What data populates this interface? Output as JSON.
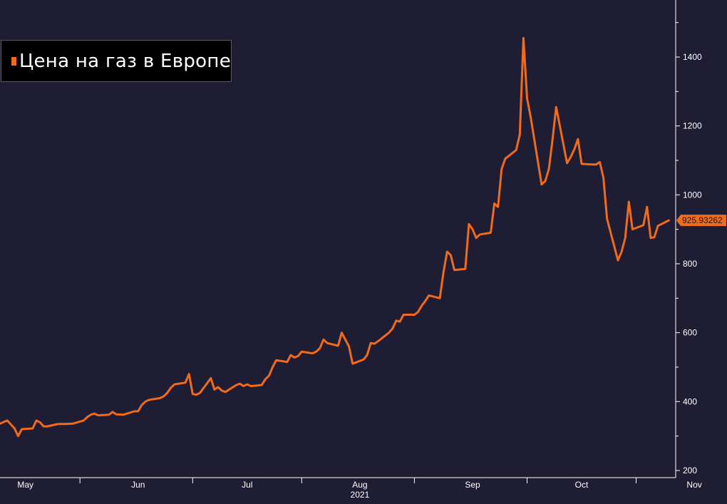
{
  "colors": {
    "background": "#1f1d33",
    "series": "#f26a1b",
    "axis": "#ffffff",
    "legend_bg": "#000000"
  },
  "legend": {
    "label": "Цена на газ в Европе",
    "position": "top-left"
  },
  "last_value_label": "925.93262",
  "chart_data": {
    "type": "line",
    "title": "",
    "xlabel": "",
    "ylabel": "",
    "year_label": "2021",
    "x_ticks": [
      "May",
      "Jun",
      "Jul",
      "Aug",
      "Sep",
      "Oct",
      "Nov"
    ],
    "y_ticks": [
      200,
      400,
      600,
      800,
      1000,
      1200,
      1400
    ],
    "xlim": [
      "2021-04-24",
      "2021-11-05"
    ],
    "ylim": [
      185,
      1550
    ],
    "grid": false,
    "legend_position": "top-left",
    "series": [
      {
        "name": "Цена на газ в Европе",
        "points": [
          [
            "2021-04-24",
            336
          ],
          [
            "2021-04-26",
            345
          ],
          [
            "2021-04-28",
            322
          ],
          [
            "2021-04-29",
            300
          ],
          [
            "2021-04-30",
            320
          ],
          [
            "2021-05-03",
            322
          ],
          [
            "2021-05-04",
            345
          ],
          [
            "2021-05-05",
            340
          ],
          [
            "2021-05-06",
            328
          ],
          [
            "2021-05-07",
            328
          ],
          [
            "2021-05-10",
            335
          ],
          [
            "2021-05-12",
            335
          ],
          [
            "2021-05-14",
            336
          ],
          [
            "2021-05-17",
            345
          ],
          [
            "2021-05-18",
            355
          ],
          [
            "2021-05-19",
            362
          ],
          [
            "2021-05-20",
            365
          ],
          [
            "2021-05-21",
            360
          ],
          [
            "2021-05-24",
            362
          ],
          [
            "2021-05-25",
            370
          ],
          [
            "2021-05-26",
            363
          ],
          [
            "2021-05-28",
            362
          ],
          [
            "2021-05-31",
            372
          ],
          [
            "2021-06-01",
            372
          ],
          [
            "2021-06-02",
            390
          ],
          [
            "2021-06-03",
            400
          ],
          [
            "2021-06-04",
            405
          ],
          [
            "2021-06-07",
            410
          ],
          [
            "2021-06-08",
            415
          ],
          [
            "2021-06-09",
            425
          ],
          [
            "2021-06-10",
            440
          ],
          [
            "2021-06-11",
            450
          ],
          [
            "2021-06-14",
            455
          ],
          [
            "2021-06-15",
            480
          ],
          [
            "2021-06-16",
            422
          ],
          [
            "2021-06-17",
            420
          ],
          [
            "2021-06-18",
            425
          ],
          [
            "2021-06-21",
            468
          ],
          [
            "2021-06-22",
            435
          ],
          [
            "2021-06-23",
            442
          ],
          [
            "2021-06-24",
            432
          ],
          [
            "2021-06-25",
            428
          ],
          [
            "2021-06-28",
            448
          ],
          [
            "2021-06-29",
            452
          ],
          [
            "2021-06-30",
            445
          ],
          [
            "2021-07-01",
            450
          ],
          [
            "2021-07-02",
            445
          ],
          [
            "2021-07-05",
            448
          ],
          [
            "2021-07-06",
            465
          ],
          [
            "2021-07-07",
            475
          ],
          [
            "2021-07-08",
            500
          ],
          [
            "2021-07-09",
            520
          ],
          [
            "2021-07-12",
            515
          ],
          [
            "2021-07-13",
            535
          ],
          [
            "2021-07-14",
            528
          ],
          [
            "2021-07-15",
            532
          ],
          [
            "2021-07-16",
            545
          ],
          [
            "2021-07-19",
            540
          ],
          [
            "2021-07-20",
            545
          ],
          [
            "2021-07-21",
            555
          ],
          [
            "2021-07-22",
            580
          ],
          [
            "2021-07-23",
            570
          ],
          [
            "2021-07-26",
            562
          ],
          [
            "2021-07-27",
            600
          ],
          [
            "2021-07-28",
            580
          ],
          [
            "2021-07-29",
            560
          ],
          [
            "2021-07-30",
            510
          ],
          [
            "2021-08-02",
            522
          ],
          [
            "2021-08-03",
            535
          ],
          [
            "2021-08-04",
            570
          ],
          [
            "2021-08-05",
            568
          ],
          [
            "2021-08-06",
            575
          ],
          [
            "2021-08-09",
            600
          ],
          [
            "2021-08-10",
            612
          ],
          [
            "2021-08-11",
            635
          ],
          [
            "2021-08-12",
            632
          ],
          [
            "2021-08-13",
            652
          ],
          [
            "2021-08-16",
            652
          ],
          [
            "2021-08-17",
            660
          ],
          [
            "2021-08-18",
            678
          ],
          [
            "2021-08-19",
            692
          ],
          [
            "2021-08-20",
            708
          ],
          [
            "2021-08-23",
            700
          ],
          [
            "2021-08-24",
            775
          ],
          [
            "2021-08-25",
            835
          ],
          [
            "2021-08-26",
            825
          ],
          [
            "2021-08-27",
            782
          ],
          [
            "2021-08-30",
            785
          ],
          [
            "2021-08-31",
            915
          ],
          [
            "2021-09-01",
            900
          ],
          [
            "2021-09-02",
            875
          ],
          [
            "2021-09-03",
            885
          ],
          [
            "2021-09-06",
            890
          ],
          [
            "2021-09-07",
            975
          ],
          [
            "2021-09-08",
            965
          ],
          [
            "2021-09-09",
            1075
          ],
          [
            "2021-09-10",
            1105
          ],
          [
            "2021-09-13",
            1130
          ],
          [
            "2021-09-14",
            1175
          ],
          [
            "2021-09-15",
            1455
          ],
          [
            "2021-09-16",
            1280
          ],
          [
            "2021-09-17",
            1225
          ],
          [
            "2021-09-20",
            1030
          ],
          [
            "2021-09-21",
            1040
          ],
          [
            "2021-09-22",
            1075
          ],
          [
            "2021-09-23",
            1160
          ],
          [
            "2021-09-24",
            1255
          ],
          [
            "2021-09-27",
            1092
          ],
          [
            "2021-09-28",
            1110
          ],
          [
            "2021-09-29",
            1132
          ],
          [
            "2021-09-30",
            1162
          ],
          [
            "2021-10-01",
            1090
          ],
          [
            "2021-10-04",
            1088
          ],
          [
            "2021-10-05",
            1088
          ],
          [
            "2021-10-06",
            1095
          ],
          [
            "2021-10-07",
            1050
          ],
          [
            "2021-10-08",
            930
          ],
          [
            "2021-10-11",
            810
          ],
          [
            "2021-10-12",
            835
          ],
          [
            "2021-10-13",
            875
          ],
          [
            "2021-10-14",
            980
          ],
          [
            "2021-10-15",
            900
          ],
          [
            "2021-10-18",
            912
          ],
          [
            "2021-10-19",
            965
          ],
          [
            "2021-10-20",
            875
          ],
          [
            "2021-10-21",
            877
          ],
          [
            "2021-10-22",
            910
          ],
          [
            "2021-10-25",
            925.93262
          ]
        ]
      }
    ]
  }
}
